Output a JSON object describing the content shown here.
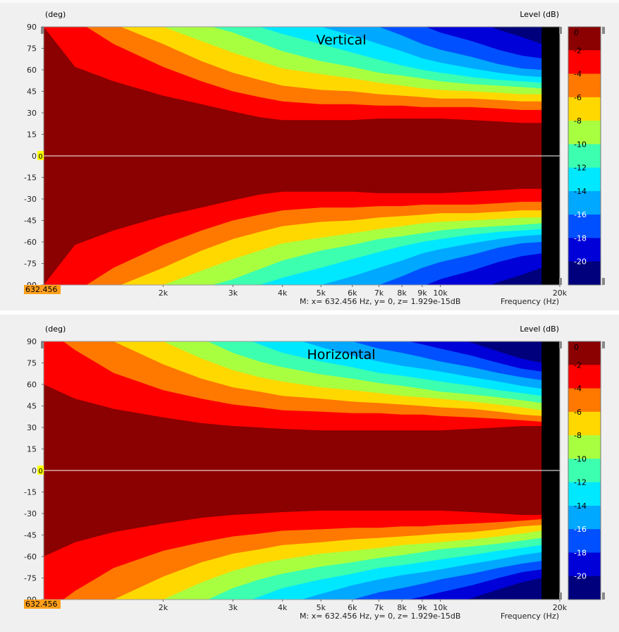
{
  "colors": {
    "scale": [
      "#8b0000",
      "#ff0000",
      "#ff7800",
      "#ffd800",
      "#a8ff40",
      "#3cffb0",
      "#00e8ff",
      "#00a8ff",
      "#0050ff",
      "#0000d8",
      "#00007c"
    ],
    "beyond": "#000000",
    "cursor_badge": "#ffff00",
    "freq_badge": "#ff9f1c"
  },
  "chart_data": [
    {
      "type": "heatmap",
      "title": "Vertical",
      "ylabel_top": "(deg)",
      "colorbar_label": "Level  (dB)",
      "xlabel": "Frequency  (Hz)",
      "x_scale": "log",
      "xlim": [
        1000,
        20000
      ],
      "ylim": [
        -90,
        90
      ],
      "x_ticks": [
        {
          "value": 2000,
          "label": "2k"
        },
        {
          "value": 3000,
          "label": "3k"
        },
        {
          "value": 4000,
          "label": "4k"
        },
        {
          "value": 5000,
          "label": "5k"
        },
        {
          "value": 6000,
          "label": "6k"
        },
        {
          "value": 7000,
          "label": "7k"
        },
        {
          "value": 8000,
          "label": "8k"
        },
        {
          "value": 9000,
          "label": "9k"
        },
        {
          "value": 10000,
          "label": "10k"
        },
        {
          "value": 20000,
          "label": "20k"
        }
      ],
      "y_ticks": [
        {
          "value": 90,
          "label": "90"
        },
        {
          "value": 75,
          "label": "75"
        },
        {
          "value": 60,
          "label": "60"
        },
        {
          "value": 45,
          "label": "45"
        },
        {
          "value": 30,
          "label": "30"
        },
        {
          "value": 15,
          "label": "15"
        },
        {
          "value": 0,
          "label": "0"
        },
        {
          "value": -15,
          "label": "-15"
        },
        {
          "value": -30,
          "label": "-30"
        },
        {
          "value": -45,
          "label": "-45"
        },
        {
          "value": -60,
          "label": "-60"
        },
        {
          "value": -75,
          "label": "-75"
        },
        {
          "value": -90,
          "label": "-90"
        }
      ],
      "levels": [
        "0",
        "-2",
        "-4",
        "-6",
        "-8",
        "-10",
        "-12",
        "-14",
        "-16",
        "-18",
        "-20"
      ],
      "data_limit_hz": 18000,
      "contours_freq_hz": [
        1000,
        1200,
        1500,
        2000,
        2500,
        3000,
        3500,
        4000,
        5000,
        6000,
        7000,
        8000,
        9000,
        10000,
        12000,
        14000,
        16000,
        18000
      ],
      "contours_angle_deg": [
        {
          "level": -2,
          "angles": [
            90,
            62,
            52,
            42,
            36,
            31,
            27,
            25,
            25,
            25,
            26,
            26,
            26,
            26,
            25,
            24,
            23,
            23
          ]
        },
        {
          "level": -4,
          "angles": [
            100,
            95,
            78,
            62,
            52,
            45,
            41,
            38,
            36,
            36,
            35,
            35,
            34,
            34,
            34,
            33,
            32,
            32
          ]
        },
        {
          "level": -6,
          "angles": [
            100,
            100,
            92,
            78,
            66,
            58,
            53,
            49,
            46,
            45,
            43,
            42,
            41,
            40,
            40,
            39,
            38,
            38
          ]
        },
        {
          "level": -8,
          "angles": [
            100,
            100,
            100,
            90,
            80,
            72,
            66,
            61,
            57,
            54,
            51,
            49,
            47,
            46,
            45,
            44,
            43,
            43
          ]
        },
        {
          "level": -10,
          "angles": [
            100,
            100,
            100,
            100,
            92,
            86,
            79,
            73,
            66,
            62,
            58,
            56,
            54,
            52,
            50,
            49,
            48,
            47
          ]
        },
        {
          "level": -12,
          "angles": [
            100,
            100,
            100,
            100,
            100,
            94,
            90,
            85,
            78,
            72,
            67,
            63,
            60,
            58,
            55,
            53,
            52,
            51
          ]
        },
        {
          "level": -14,
          "angles": [
            100,
            100,
            100,
            100,
            100,
            100,
            100,
            95,
            90,
            84,
            78,
            73,
            68,
            65,
            61,
            58,
            56,
            55
          ]
        },
        {
          "level": -16,
          "angles": [
            100,
            100,
            100,
            100,
            100,
            100,
            100,
            100,
            100,
            96,
            90,
            84,
            78,
            74,
            69,
            64,
            61,
            60
          ]
        },
        {
          "level": -18,
          "angles": [
            100,
            100,
            100,
            100,
            100,
            100,
            100,
            100,
            100,
            100,
            100,
            97,
            91,
            86,
            80,
            74,
            70,
            68
          ]
        },
        {
          "level": -20,
          "angles": [
            100,
            100,
            100,
            100,
            100,
            100,
            100,
            100,
            100,
            100,
            100,
            100,
            100,
            100,
            95,
            88,
            83,
            78
          ]
        }
      ],
      "cursor": {
        "x_label": "632.456",
        "y_label": "0"
      },
      "readout": "M:  x= 632.456 Hz,  y= 0, z= 1.929e-15dB"
    },
    {
      "type": "heatmap",
      "title": "Horizontal",
      "ylabel_top": "(deg)",
      "colorbar_label": "Level  (dB)",
      "xlabel": "Frequency  (Hz)",
      "x_scale": "log",
      "xlim": [
        1000,
        20000
      ],
      "ylim": [
        -90,
        90
      ],
      "x_ticks": [
        {
          "value": 2000,
          "label": "2k"
        },
        {
          "value": 3000,
          "label": "3k"
        },
        {
          "value": 4000,
          "label": "4k"
        },
        {
          "value": 5000,
          "label": "5k"
        },
        {
          "value": 6000,
          "label": "6k"
        },
        {
          "value": 7000,
          "label": "7k"
        },
        {
          "value": 8000,
          "label": "8k"
        },
        {
          "value": 9000,
          "label": "9k"
        },
        {
          "value": 10000,
          "label": "10k"
        },
        {
          "value": 20000,
          "label": "20k"
        }
      ],
      "y_ticks": [
        {
          "value": 90,
          "label": "90"
        },
        {
          "value": 75,
          "label": "75"
        },
        {
          "value": 60,
          "label": "60"
        },
        {
          "value": 45,
          "label": "45"
        },
        {
          "value": 30,
          "label": "30"
        },
        {
          "value": 15,
          "label": "15"
        },
        {
          "value": 0,
          "label": "0"
        },
        {
          "value": -15,
          "label": "-15"
        },
        {
          "value": -30,
          "label": "-30"
        },
        {
          "value": -45,
          "label": "-45"
        },
        {
          "value": -60,
          "label": "-60"
        },
        {
          "value": -75,
          "label": "-75"
        },
        {
          "value": -90,
          "label": "-90"
        }
      ],
      "levels": [
        "0",
        "-2",
        "-4",
        "-6",
        "-8",
        "-10",
        "-12",
        "-14",
        "-16",
        "-18",
        "-20"
      ],
      "data_limit_hz": 18000,
      "contours_freq_hz": [
        1000,
        1200,
        1500,
        2000,
        2500,
        3000,
        3500,
        4000,
        5000,
        6000,
        7000,
        8000,
        9000,
        10000,
        12000,
        14000,
        16000,
        18000
      ],
      "contours_angle_deg": [
        {
          "level": -2,
          "angles": [
            60,
            50,
            43,
            37,
            33,
            31,
            30,
            29,
            28,
            28,
            28,
            28,
            28,
            28,
            29,
            30,
            31,
            31
          ]
        },
        {
          "level": -4,
          "angles": [
            100,
            84,
            68,
            56,
            50,
            46,
            44,
            42,
            41,
            40,
            40,
            39,
            39,
            38,
            37,
            36,
            35,
            34
          ]
        },
        {
          "level": -6,
          "angles": [
            100,
            100,
            90,
            74,
            64,
            58,
            55,
            52,
            50,
            48,
            47,
            46,
            45,
            44,
            43,
            41,
            39,
            38
          ]
        },
        {
          "level": -8,
          "angles": [
            100,
            100,
            100,
            90,
            78,
            70,
            65,
            62,
            58,
            56,
            54,
            52,
            51,
            50,
            48,
            46,
            44,
            42
          ]
        },
        {
          "level": -10,
          "angles": [
            100,
            100,
            100,
            100,
            92,
            82,
            76,
            72,
            67,
            64,
            61,
            59,
            57,
            55,
            53,
            51,
            49,
            47
          ]
        },
        {
          "level": -12,
          "angles": [
            100,
            100,
            100,
            100,
            100,
            95,
            88,
            82,
            76,
            72,
            68,
            66,
            64,
            62,
            59,
            56,
            54,
            52
          ]
        },
        {
          "level": -14,
          "angles": [
            100,
            100,
            100,
            100,
            100,
            100,
            100,
            94,
            86,
            80,
            76,
            73,
            71,
            69,
            65,
            62,
            59,
            57
          ]
        },
        {
          "level": -16,
          "angles": [
            100,
            100,
            100,
            100,
            100,
            100,
            100,
            100,
            97,
            90,
            85,
            82,
            79,
            76,
            72,
            68,
            65,
            63
          ]
        },
        {
          "level": -18,
          "angles": [
            100,
            100,
            100,
            100,
            100,
            100,
            100,
            100,
            100,
            100,
            95,
            91,
            88,
            85,
            80,
            75,
            71,
            69
          ]
        },
        {
          "level": -20,
          "angles": [
            100,
            100,
            100,
            100,
            100,
            100,
            100,
            100,
            100,
            100,
            100,
            100,
            98,
            95,
            89,
            83,
            78,
            75
          ]
        }
      ],
      "cursor": {
        "x_label": "632.456",
        "y_label": "0"
      },
      "readout": "M:  x= 632.456 Hz,  y= 0, z= 1.929e-15dB"
    }
  ]
}
